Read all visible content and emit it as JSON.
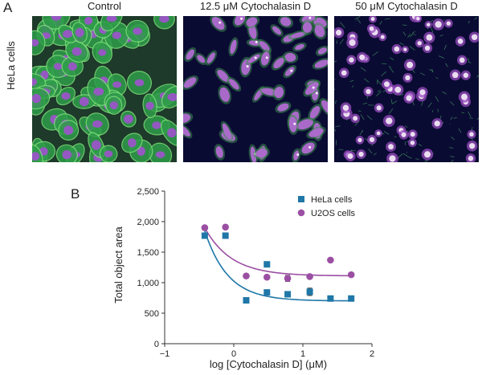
{
  "panel_a": {
    "letter": "A",
    "row_label": "HeLa cells",
    "columns": [
      {
        "title": "Control"
      },
      {
        "title": "12.5 μM Cytochalasin D"
      },
      {
        "title": "50 μM Cytochalasin D"
      }
    ]
  },
  "panel_b": {
    "letter": "B"
  },
  "chart_data": {
    "type": "scatter",
    "title": "",
    "xlabel": "log [Cytochalasin D] (μM)",
    "ylabel": "Total object area",
    "xlim": [
      -1,
      2
    ],
    "ylim": [
      0,
      2500
    ],
    "x_ticks": [
      -1,
      0,
      1,
      2
    ],
    "y_ticks": [
      0,
      500,
      1000,
      1500,
      2000,
      2500
    ],
    "y_tick_labels": [
      "0",
      "500",
      "1,000",
      "1,500",
      "2,000",
      "2,500"
    ],
    "grid": false,
    "legend_position": "top-right",
    "series": [
      {
        "name": "HeLa cells",
        "marker": "square",
        "color": "#1f77a8",
        "points": [
          {
            "x": -0.42,
            "y": 1770
          },
          {
            "x": -0.12,
            "y": 1770
          },
          {
            "x": 0.18,
            "y": 710
          },
          {
            "x": 0.48,
            "y": 1300
          },
          {
            "x": 0.48,
            "y": 840
          },
          {
            "x": 0.78,
            "y": 810
          },
          {
            "x": 1.1,
            "y": 850,
            "err": 60
          },
          {
            "x": 1.4,
            "y": 740
          },
          {
            "x": 1.7,
            "y": 740
          }
        ],
        "fit": {
          "bottom": 700,
          "span": 1150,
          "x0": -0.42,
          "k": 3.0
        }
      },
      {
        "name": "U2OS cells",
        "marker": "circle",
        "color": "#9b4fa3",
        "points": [
          {
            "x": -0.42,
            "y": 1900
          },
          {
            "x": -0.12,
            "y": 1910
          },
          {
            "x": 0.18,
            "y": 1110
          },
          {
            "x": 0.48,
            "y": 1090
          },
          {
            "x": 0.78,
            "y": 1070,
            "err": 50
          },
          {
            "x": 1.1,
            "y": 1100
          },
          {
            "x": 1.4,
            "y": 1370
          },
          {
            "x": 1.7,
            "y": 1130
          }
        ],
        "fit": {
          "bottom": 1110,
          "span": 790,
          "x0": -0.42,
          "k": 2.6
        }
      }
    ]
  }
}
